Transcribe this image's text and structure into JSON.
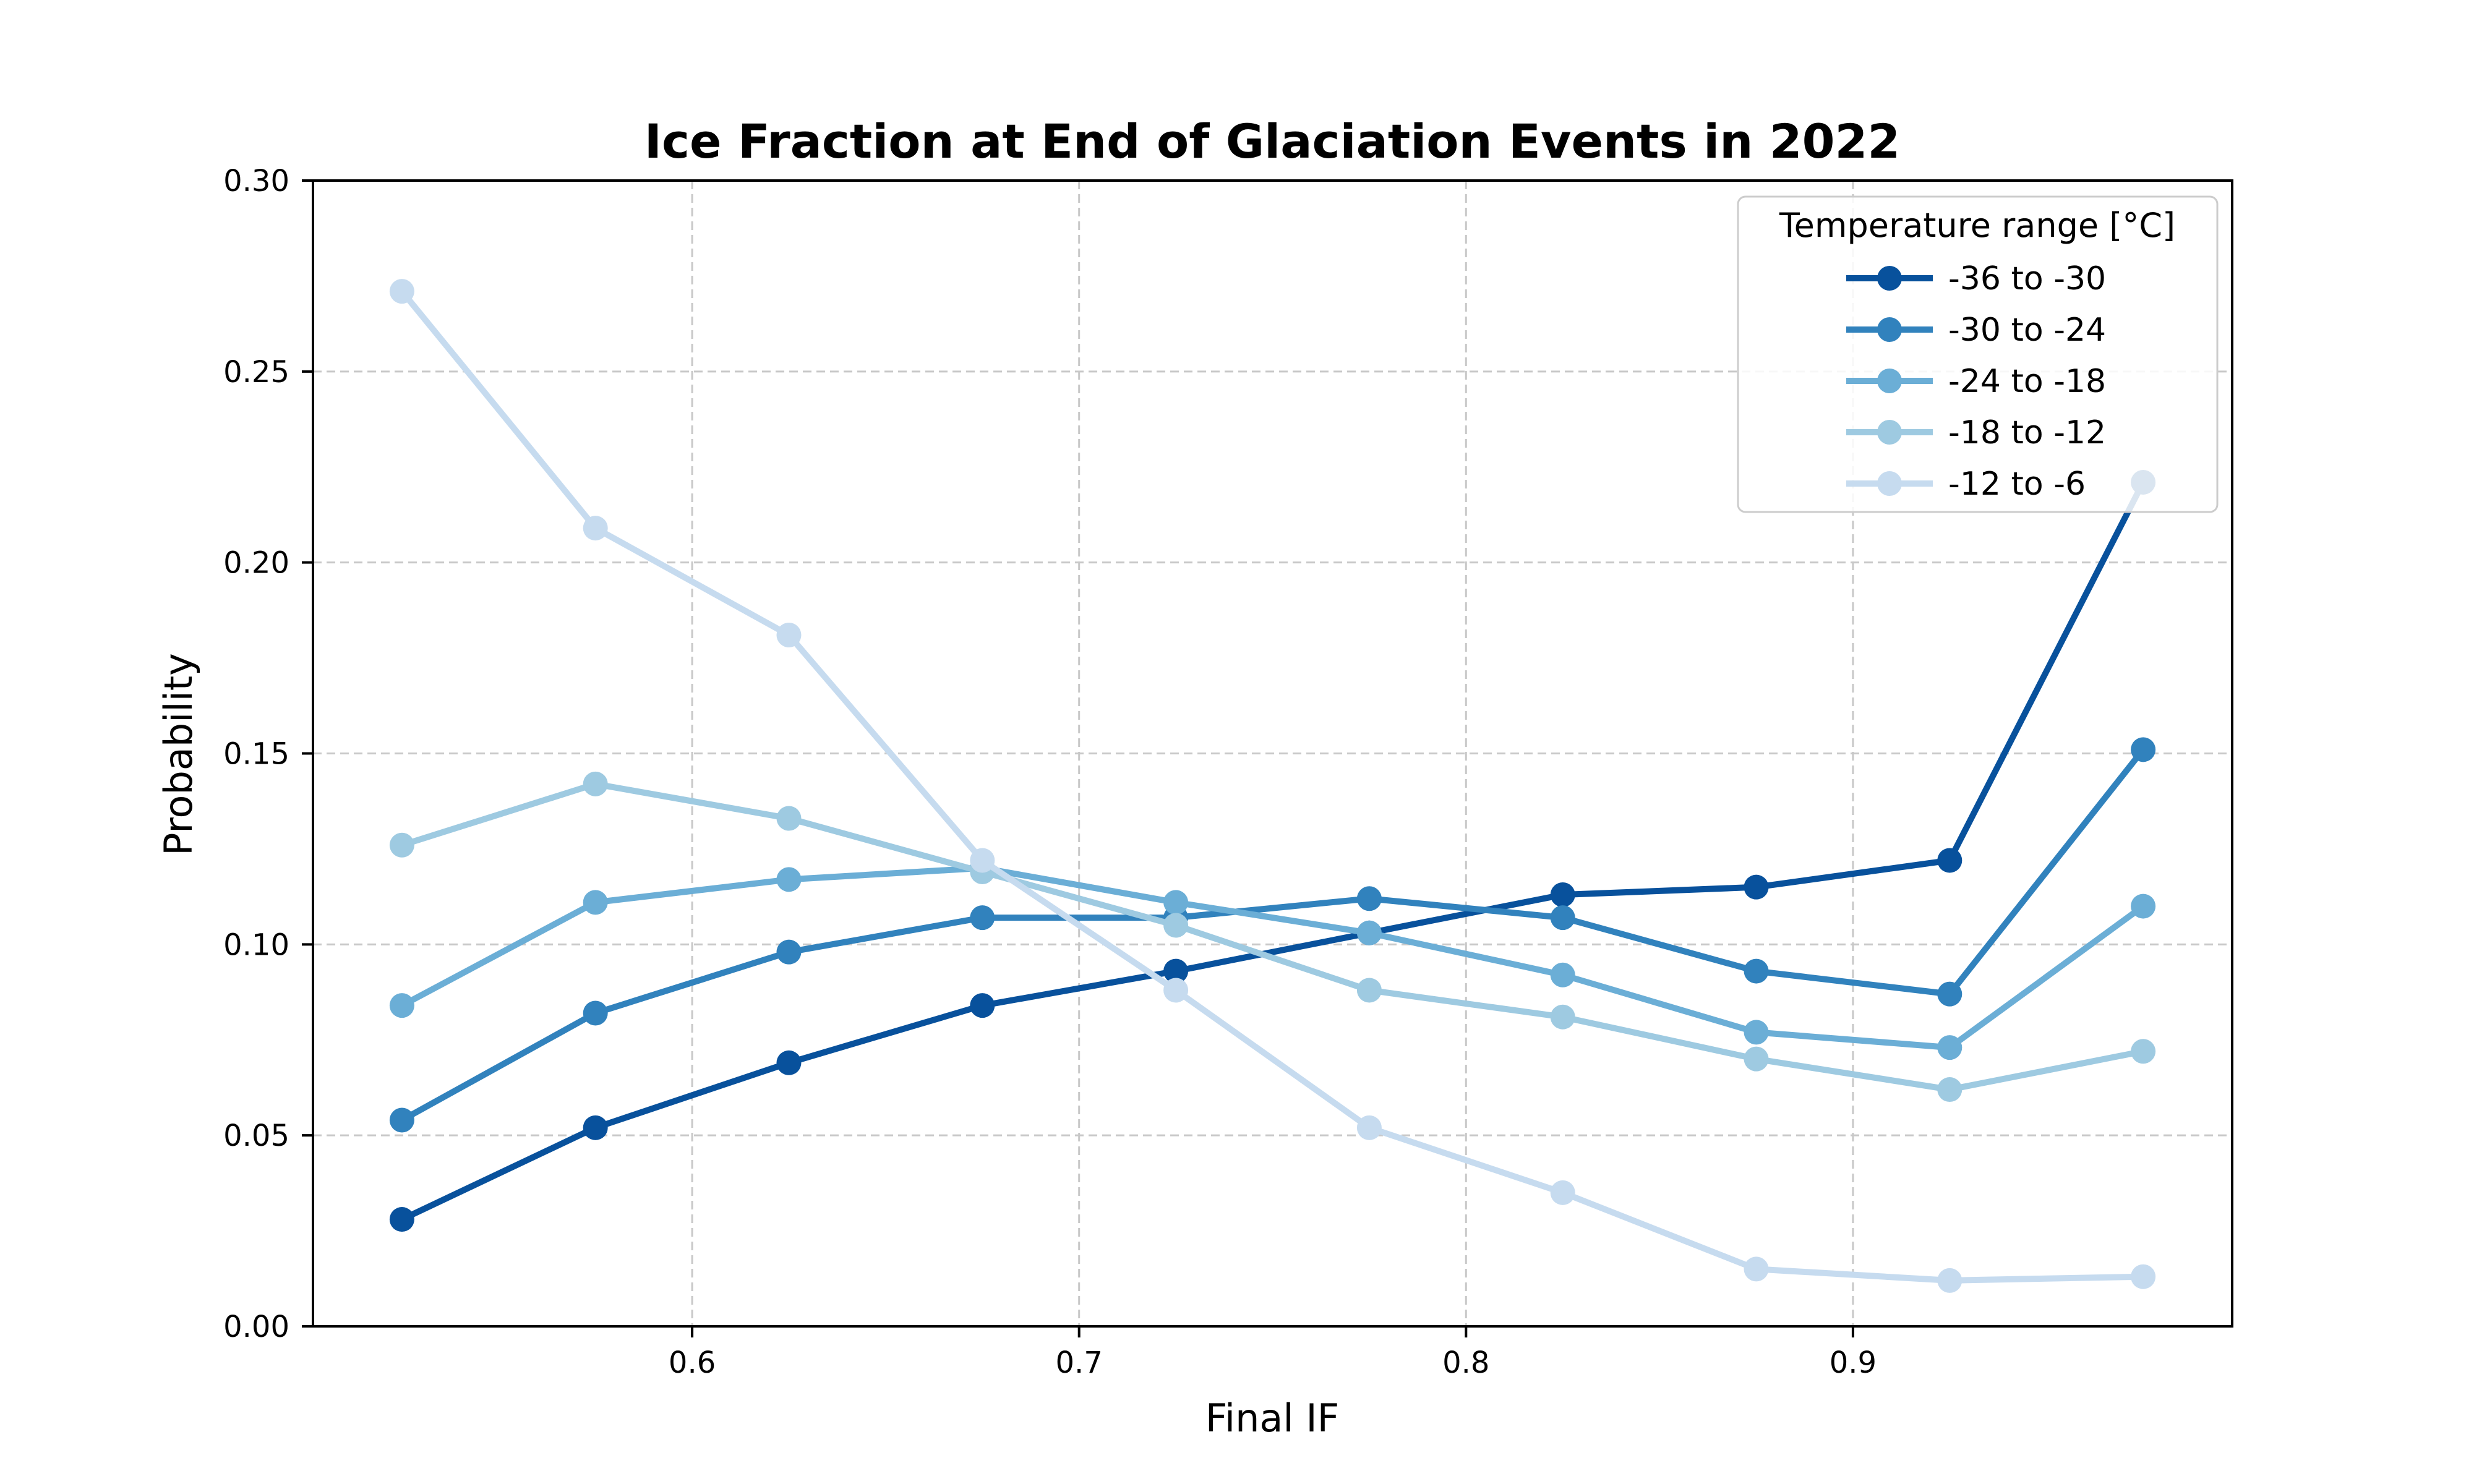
{
  "chart_data": {
    "type": "line",
    "title": "Ice Fraction at End of Glaciation Events in 2022",
    "xlabel": "Final IF",
    "ylabel": "Probability",
    "xlim": [
      0.502,
      0.998
    ],
    "ylim": [
      0.0,
      0.3
    ],
    "x_ticks": [
      0.6,
      0.7,
      0.8,
      0.9
    ],
    "x_tick_labels": [
      "0.6",
      "0.7",
      "0.8",
      "0.9"
    ],
    "y_ticks": [
      0.0,
      0.05,
      0.1,
      0.15,
      0.2,
      0.25,
      0.3
    ],
    "y_tick_labels": [
      "0.00",
      "0.05",
      "0.10",
      "0.15",
      "0.20",
      "0.25",
      "0.30"
    ],
    "grid": true,
    "legend_title": "Temperature range [°C]",
    "legend_position": "top-right",
    "x": [
      0.525,
      0.575,
      0.625,
      0.675,
      0.725,
      0.775,
      0.825,
      0.875,
      0.925,
      0.975
    ],
    "series": [
      {
        "name": "-36 to -30",
        "color": "#08519c",
        "values": [
          0.028,
          0.052,
          0.069,
          0.084,
          0.093,
          0.103,
          0.113,
          0.115,
          0.122,
          0.221
        ]
      },
      {
        "name": "-30 to -24",
        "color": "#3182bd",
        "values": [
          0.054,
          0.082,
          0.098,
          0.107,
          0.107,
          0.112,
          0.107,
          0.093,
          0.087,
          0.151
        ]
      },
      {
        "name": "-24 to -18",
        "color": "#6baed6",
        "values": [
          0.084,
          0.111,
          0.117,
          0.12,
          0.111,
          0.103,
          0.092,
          0.077,
          0.073,
          0.11
        ]
      },
      {
        "name": "-18 to -12",
        "color": "#9ecae1",
        "values": [
          0.126,
          0.142,
          0.133,
          0.119,
          0.105,
          0.088,
          0.081,
          0.07,
          0.062,
          0.072
        ]
      },
      {
        "name": "-12 to -6",
        "color": "#c6dbef",
        "values": [
          0.271,
          0.209,
          0.181,
          0.122,
          0.088,
          0.052,
          0.035,
          0.015,
          0.012,
          0.013
        ]
      }
    ]
  }
}
